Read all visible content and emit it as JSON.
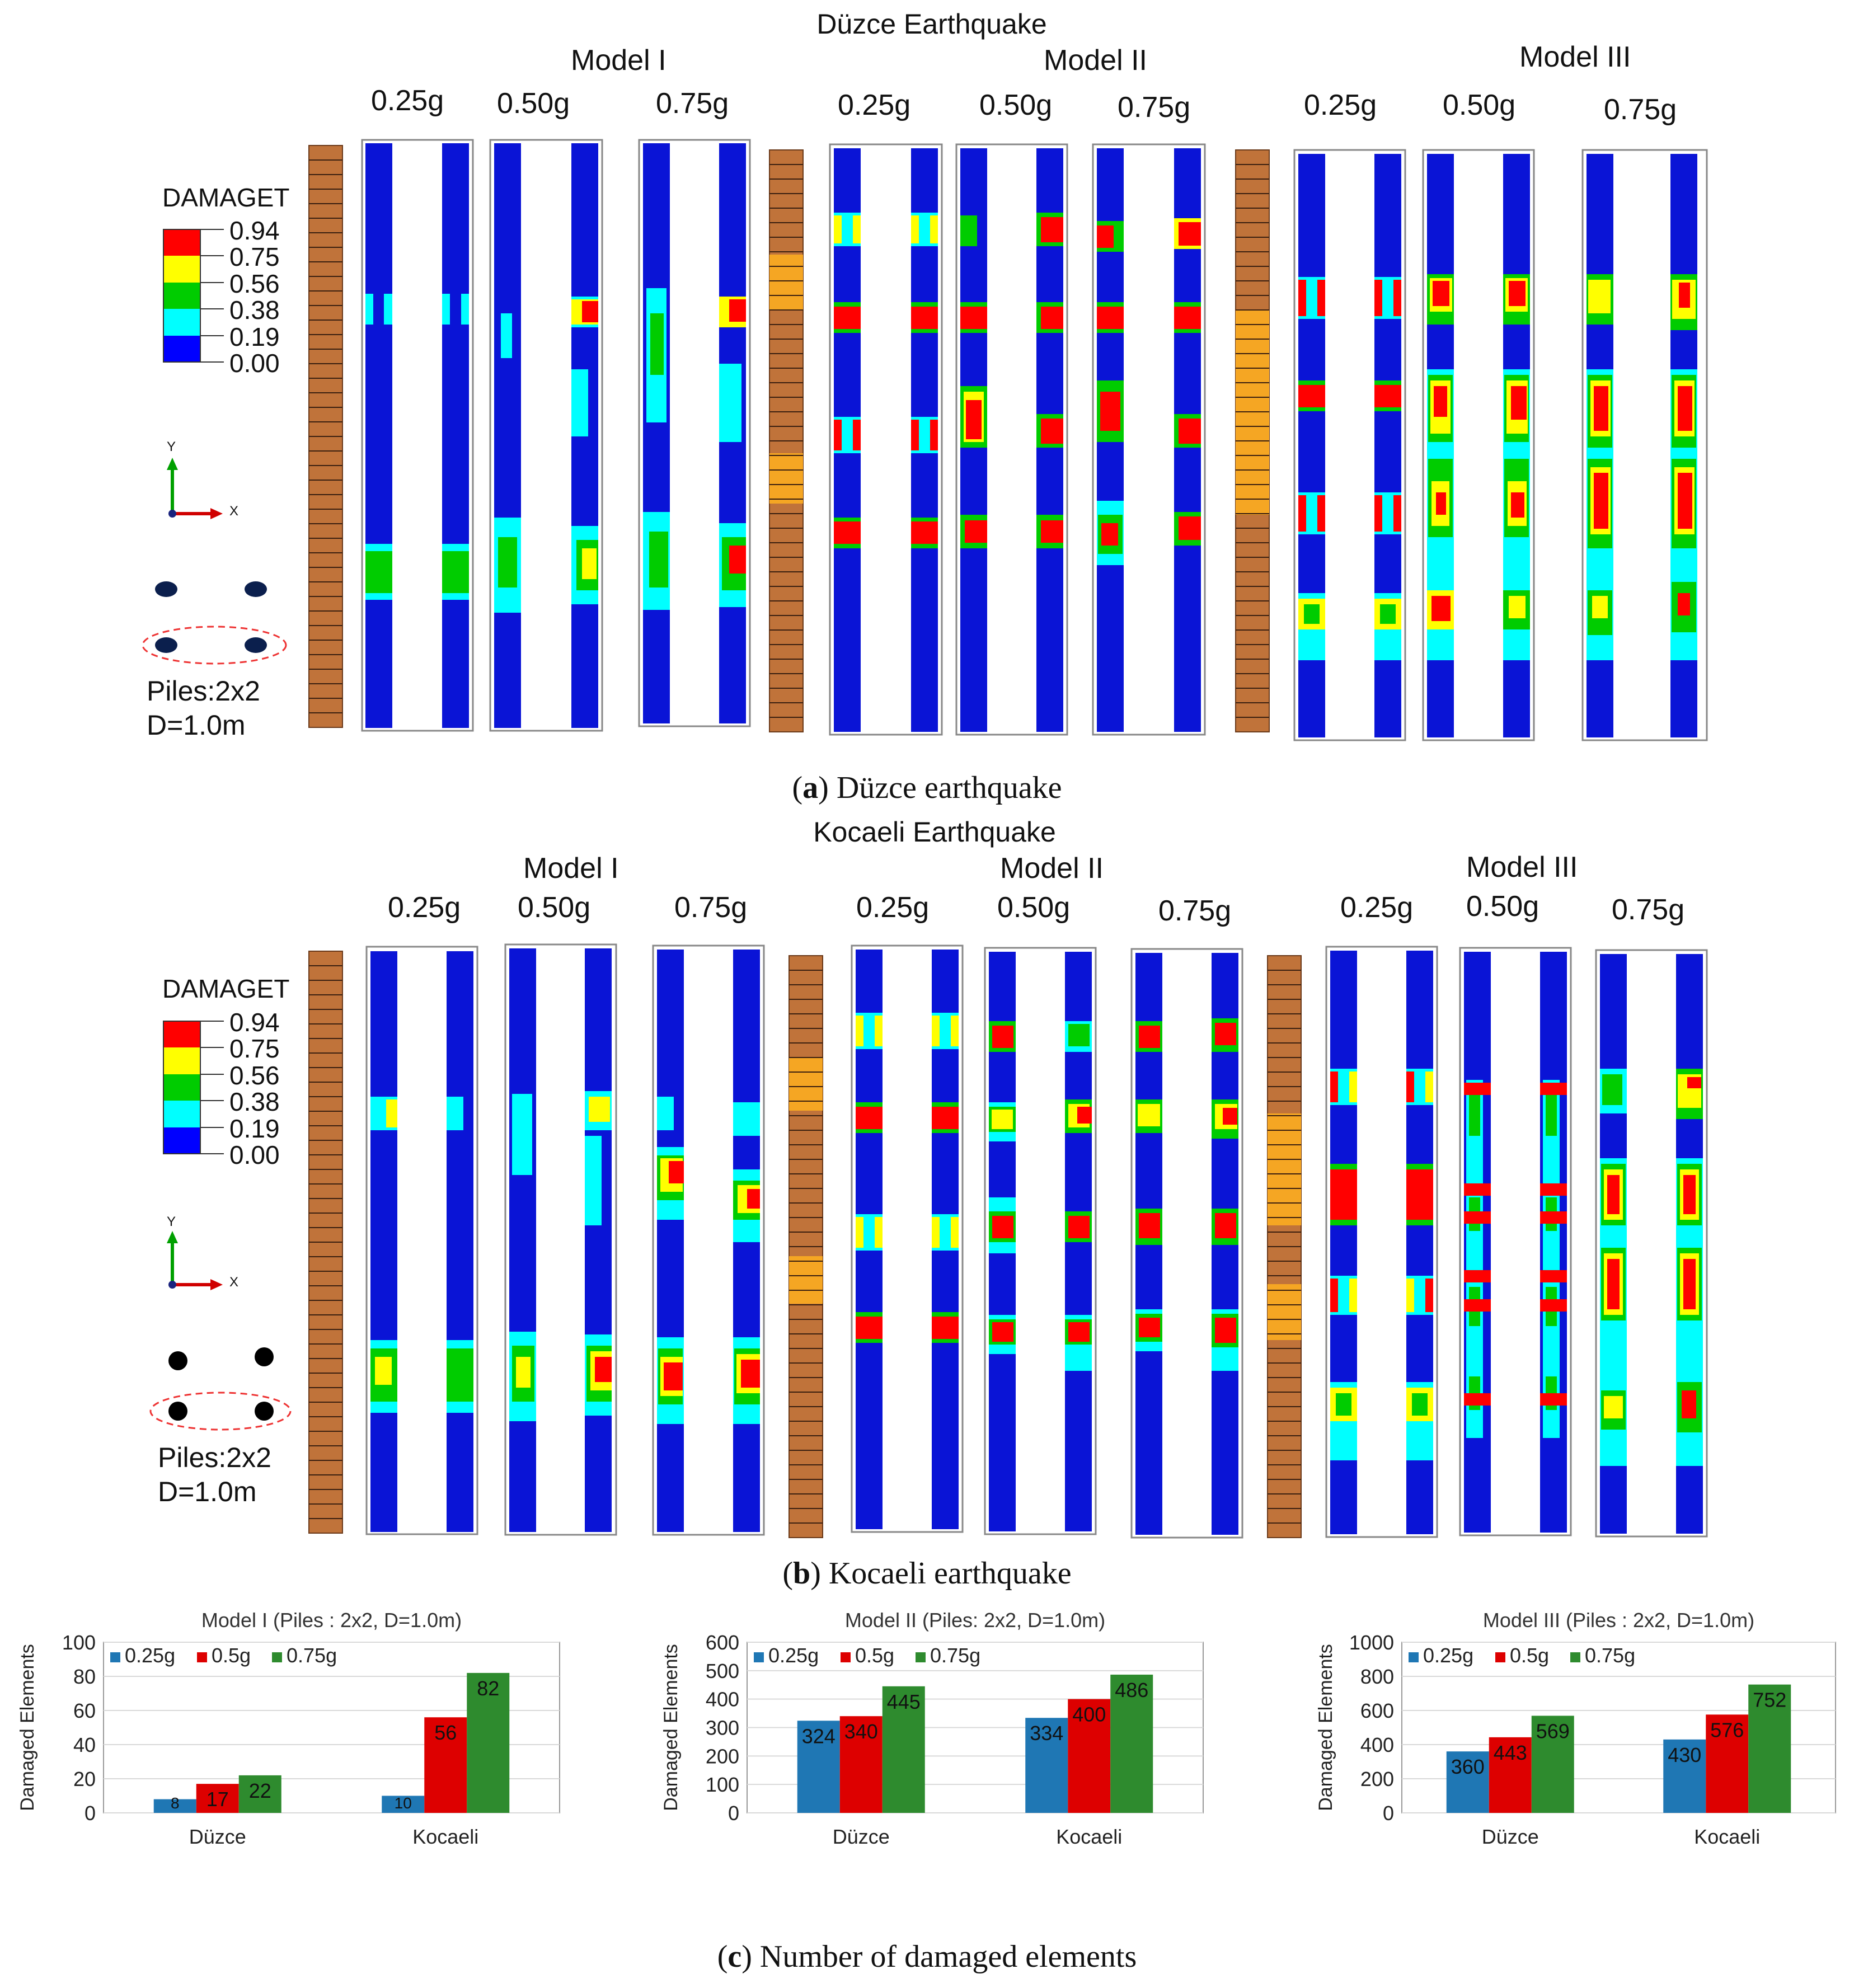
{
  "panel_a": {
    "title": "Düzce Earthquake",
    "models": [
      "Model I",
      "Model II",
      "Model III"
    ],
    "pga_labels": [
      "0.25g",
      "0.50g",
      "0.75g"
    ],
    "caption_letter": "a",
    "caption_text": " Düzce earthquake"
  },
  "panel_b": {
    "title": "Kocaeli Earthquake",
    "models": [
      "Model I",
      "Model II",
      "Model III"
    ],
    "pga_labels": [
      "0.25g",
      "0.50g",
      "0.75g"
    ],
    "caption_letter": "b",
    "caption_text": " Kocaeli earthquake"
  },
  "legend": {
    "title": "DAMAGET",
    "values": [
      "0.94",
      "0.75",
      "0.56",
      "0.38",
      "0.19",
      "0.00"
    ],
    "colors": [
      "#ff0000",
      "#ffff00",
      "#00cc00",
      "#00ffff",
      "#0000ff"
    ]
  },
  "axis_triad": {
    "y": "Y",
    "x": "X"
  },
  "pile_info": {
    "line1": "Piles:2x2",
    "line2": "D=1.0m"
  },
  "colors": {
    "pile_blue": "#0a14d6",
    "soil_brown": "#c0733a",
    "soil_orange": "#f5a623",
    "bar_025": "#1f77b4",
    "bar_05": "#dd0000",
    "bar_075": "#2e8b2e"
  },
  "caption_c": {
    "letter": "c",
    "text": " Number of damaged elements"
  },
  "chart_data": [
    {
      "type": "bar",
      "title": "Model I (Piles : 2x2, D=1.0m)",
      "ylabel": "Damaged Elements",
      "xlabel": "",
      "categories": [
        "Düzce",
        "Kocaeli"
      ],
      "ylim": [
        0,
        100
      ],
      "yticks": [
        "0",
        "20",
        "40",
        "60",
        "80",
        "100"
      ],
      "series": [
        {
          "name": "0.25g",
          "values": [
            8,
            10
          ]
        },
        {
          "name": "0.5g",
          "values": [
            17,
            56
          ]
        },
        {
          "name": "0.75g",
          "values": [
            22,
            82
          ]
        }
      ],
      "data_labels": [
        [
          "8",
          "10"
        ],
        [
          "17",
          "56"
        ],
        [
          "22",
          "82"
        ]
      ]
    },
    {
      "type": "bar",
      "title": "Model II (Piles: 2x2, D=1.0m)",
      "ylabel": "Damaged Elements",
      "xlabel": "",
      "categories": [
        "Düzce",
        "Kocaeli"
      ],
      "ylim": [
        0,
        600
      ],
      "yticks": [
        "0",
        "100",
        "200",
        "300",
        "400",
        "500",
        "600"
      ],
      "series": [
        {
          "name": "0.25g",
          "values": [
            324,
            334
          ]
        },
        {
          "name": "0.5g",
          "values": [
            340,
            400
          ]
        },
        {
          "name": "0.75g",
          "values": [
            445,
            486
          ]
        }
      ],
      "data_labels": [
        [
          "324",
          "334"
        ],
        [
          "340",
          "400"
        ],
        [
          "445",
          "486"
        ]
      ]
    },
    {
      "type": "bar",
      "title": "Model III (Piles : 2x2, D=1.0m)",
      "ylabel": "Damaged Elements",
      "xlabel": "",
      "categories": [
        "Düzce",
        "Kocaeli"
      ],
      "ylim": [
        0,
        1000
      ],
      "yticks": [
        "0",
        "200",
        "400",
        "600",
        "800",
        "1000"
      ],
      "series": [
        {
          "name": "0.25g",
          "values": [
            360,
            430
          ]
        },
        {
          "name": "0.5g",
          "values": [
            443,
            576
          ]
        },
        {
          "name": "0.75g",
          "values": [
            569,
            752
          ]
        }
      ],
      "data_labels": [
        [
          "360",
          "430"
        ],
        [
          "443",
          "576"
        ],
        [
          "569",
          "752"
        ]
      ]
    }
  ]
}
